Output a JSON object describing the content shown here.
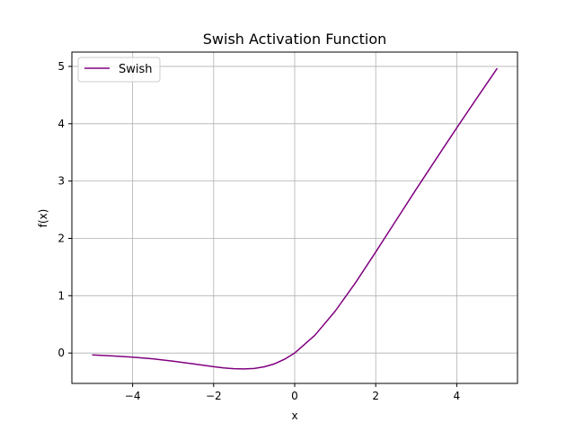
{
  "chart_data": {
    "type": "line",
    "title": "Swish Activation Function",
    "xlabel": "x",
    "ylabel": "f(x)",
    "xlim": [
      -5.5,
      5.5
    ],
    "ylim": [
      -0.53,
      5.25
    ],
    "x_ticks": [
      -4,
      -2,
      0,
      2,
      4
    ],
    "x_tick_labels": [
      "−4",
      "−2",
      "0",
      "2",
      "4"
    ],
    "y_ticks": [
      0,
      1,
      2,
      3,
      4,
      5
    ],
    "y_tick_labels": [
      "0",
      "1",
      "2",
      "3",
      "4",
      "5"
    ],
    "grid": true,
    "legend_position": "upper-left",
    "series": [
      {
        "name": "Swish",
        "color": "#800080",
        "x": [
          -5,
          -4.5,
          -4,
          -3.5,
          -3,
          -2.5,
          -2,
          -1.75,
          -1.5,
          -1.25,
          -1,
          -0.75,
          -0.5,
          -0.25,
          0,
          0.5,
          1,
          1.5,
          2,
          2.5,
          3,
          3.5,
          4,
          4.5,
          5
        ],
        "y": [
          -0.033,
          -0.05,
          -0.072,
          -0.101,
          -0.142,
          -0.189,
          -0.238,
          -0.26,
          -0.274,
          -0.278,
          -0.269,
          -0.24,
          -0.189,
          -0.109,
          0,
          0.311,
          0.731,
          1.226,
          1.762,
          2.311,
          2.858,
          3.395,
          3.928,
          4.45,
          4.967
        ]
      }
    ]
  }
}
